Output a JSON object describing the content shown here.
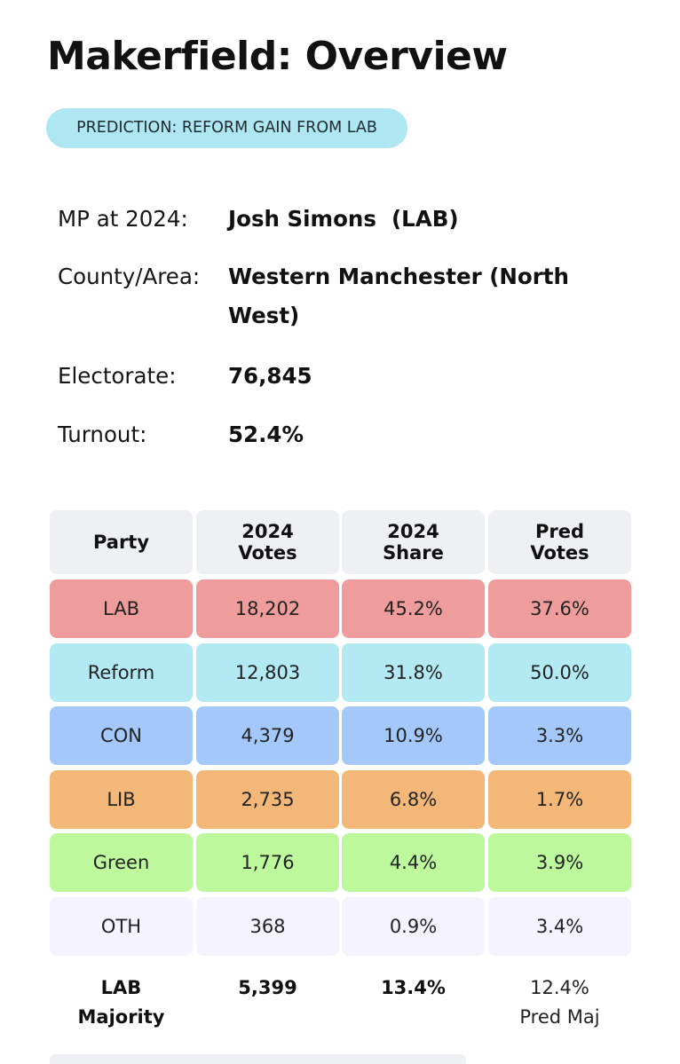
{
  "title": "Makerfield: Overview",
  "prediction_badge": "PREDICTION: REFORM GAIN FROM LAB",
  "info": {
    "mp_label": "MP at 2024:",
    "mp_value": "Josh Simons  (LAB)",
    "area_label": "County/Area:",
    "area_value": "Western Manchester (North West)",
    "electorate_label": "Electorate:",
    "electorate_value": "76,845",
    "turnout_label": "Turnout:",
    "turnout_value": "52.4%"
  },
  "table": {
    "headers": [
      "Party",
      "2024 Votes",
      "2024 Share",
      "Pred Votes"
    ],
    "rows": [
      {
        "party": "LAB",
        "votes_2024": "18,202",
        "share_2024": "45.2%",
        "pred": "37.6%",
        "color": "#ef9c9c"
      },
      {
        "party": "Reform",
        "votes_2024": "12,803",
        "share_2024": "31.8%",
        "pred": "50.0%",
        "color": "#b3e9f2"
      },
      {
        "party": "CON",
        "votes_2024": "4,379",
        "share_2024": "10.9%",
        "pred": "3.3%",
        "color": "#a5c8fa"
      },
      {
        "party": "LIB",
        "votes_2024": "2,735",
        "share_2024": "6.8%",
        "pred": "1.7%",
        "color": "#f3b877"
      },
      {
        "party": "Green",
        "votes_2024": "1,776",
        "share_2024": "4.4%",
        "pred": "3.9%",
        "color": "#bdf99c"
      },
      {
        "party": "OTH",
        "votes_2024": "368",
        "share_2024": "0.9%",
        "pred": "3.4%",
        "color": "#f5f3ff"
      }
    ],
    "footer": {
      "label_line1": "LAB",
      "label_line2": "Majority",
      "votes": "5,399",
      "share": "13.4%",
      "pred_line1": "12.4%",
      "pred_line2": "Pred Maj"
    }
  }
}
